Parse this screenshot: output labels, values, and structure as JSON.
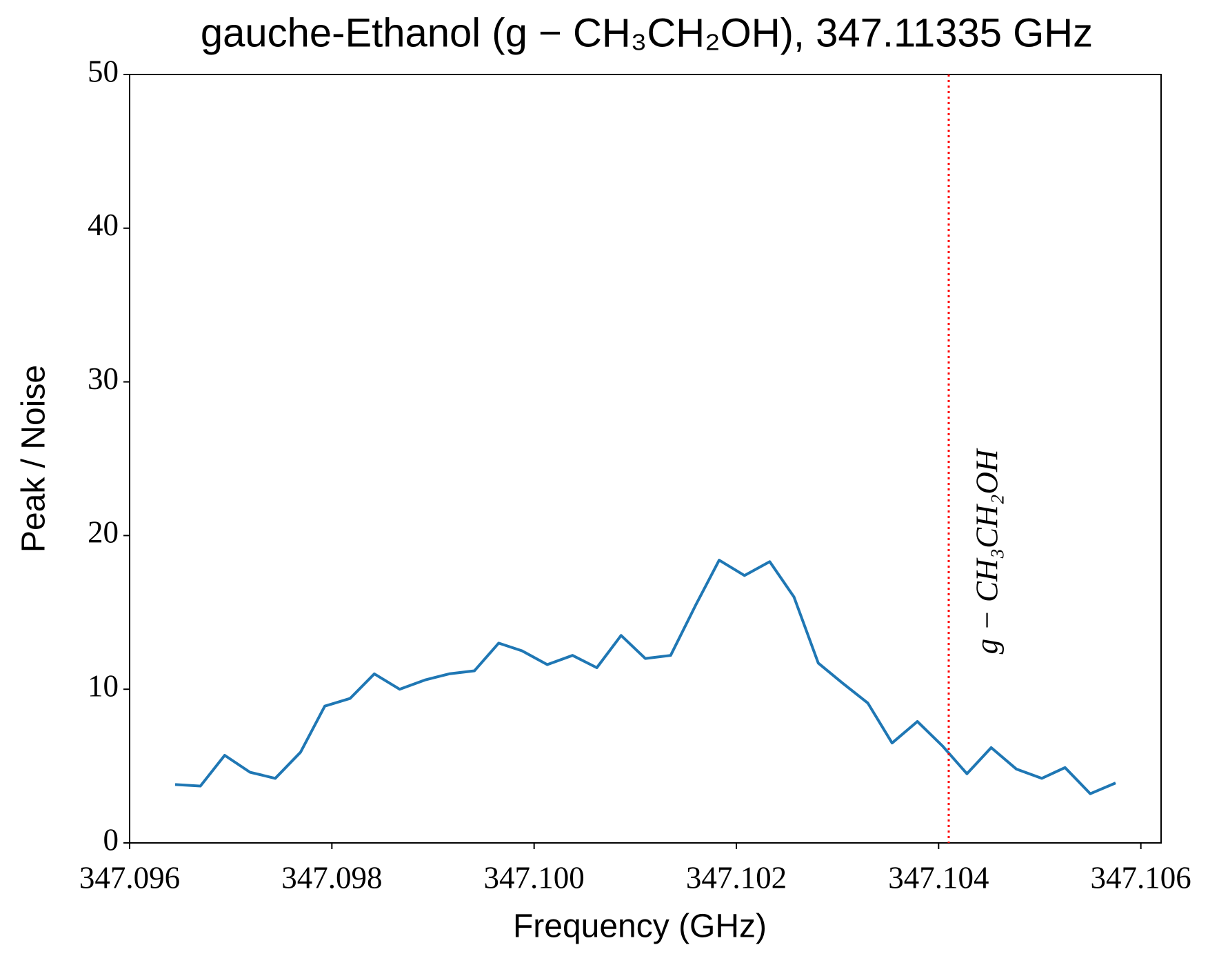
{
  "chart_data": {
    "type": "line",
    "title": "gauche-Ethanol (g − CH₃CH₂OH), 347.11335 GHz",
    "xlabel": "Frequency (GHz)",
    "ylabel": "Peak / Noise",
    "color": "#1f77b4",
    "x": [
      347.09645,
      347.0967,
      347.09694,
      347.09719,
      347.09744,
      347.09769,
      347.09793,
      347.09818,
      347.09842,
      347.09867,
      347.09892,
      347.09916,
      347.09941,
      347.09965,
      347.09988,
      347.10013,
      347.10038,
      347.10062,
      347.10086,
      347.1011,
      347.10135,
      347.1016,
      347.10183,
      347.10208,
      347.10233,
      347.10257,
      347.10281,
      347.10305,
      347.1033,
      347.10354,
      347.10379,
      347.10404,
      347.10428,
      347.10452,
      347.10477,
      347.10502,
      347.10525,
      347.1055,
      347.10575
    ],
    "values": [
      3.8,
      3.7,
      5.7,
      4.6,
      4.2,
      5.9,
      8.9,
      9.4,
      11.0,
      10.0,
      10.6,
      11.0,
      11.2,
      13.0,
      12.5,
      11.6,
      12.2,
      11.4,
      13.5,
      12.0,
      12.2,
      15.5,
      18.4,
      17.4,
      18.3,
      16.0,
      11.7,
      10.4,
      9.1,
      6.5,
      7.9,
      6.3,
      4.5,
      6.2,
      4.8,
      4.2,
      4.9,
      3.2,
      3.9
    ],
    "xlim": [
      347.096,
      347.1062
    ],
    "xticks": [
      347.096,
      347.098,
      {
        "value": 347.1,
        "label": "347.100"
      },
      347.102,
      347.104,
      347.106
    ],
    "ylim": [
      0,
      50
    ],
    "yticks": [
      0,
      10,
      20,
      30,
      40,
      50
    ],
    "vline": {
      "x": 347.1041,
      "color": "#ff0000",
      "label": "g − CH₃CH₂OH"
    }
  }
}
